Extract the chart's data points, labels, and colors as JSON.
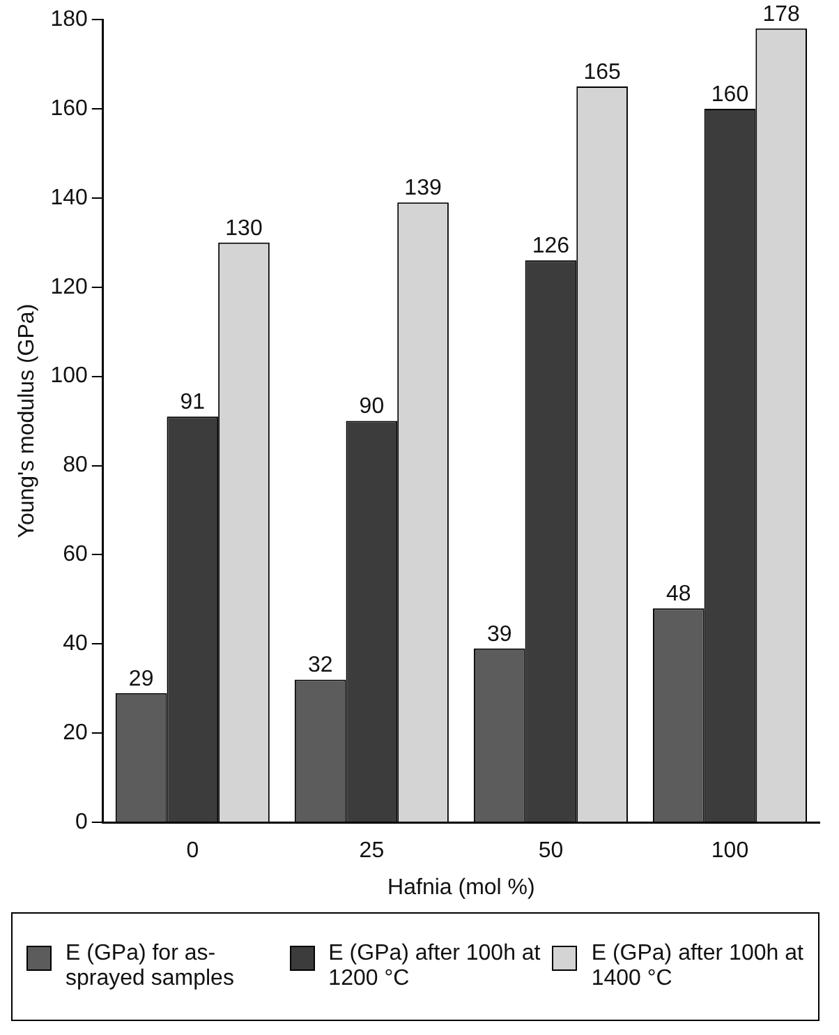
{
  "chart_data": {
    "type": "bar",
    "xlabel": "Hafnia (mol %)",
    "ylabel": "Young's modulus (GPa)",
    "categories": [
      "0",
      "25",
      "50",
      "100"
    ],
    "series": [
      {
        "name": "E (GPa) for as-sprayed samples",
        "color": "#5c5c5c",
        "values": [
          29,
          32,
          39,
          48
        ]
      },
      {
        "name": "E (GPa) after 100h at 1200 °C",
        "color": "#3c3c3c",
        "values": [
          91,
          90,
          126,
          160
        ]
      },
      {
        "name": "E (GPa) after 100h at 1400 °C",
        "color": "#d4d4d4",
        "values": [
          130,
          139,
          165,
          178
        ]
      }
    ],
    "ylim": [
      0,
      180
    ],
    "yticks": [
      0,
      20,
      40,
      60,
      80,
      100,
      120,
      140,
      160,
      180
    ],
    "grid": false,
    "legend": "bottom",
    "data_labels": true
  }
}
